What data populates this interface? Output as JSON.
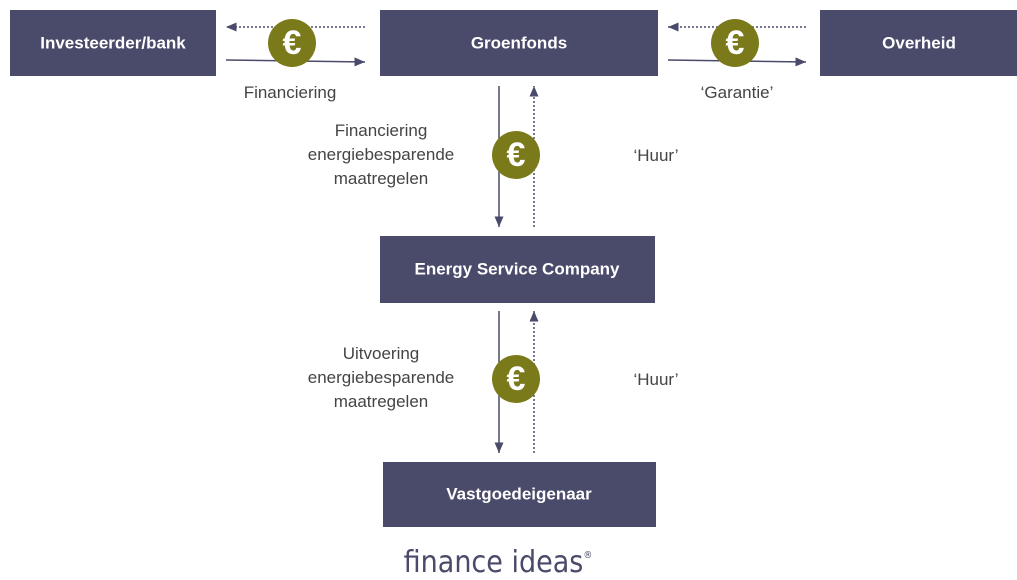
{
  "nodes": [
    {
      "label": "Investeerder/bank"
    },
    {
      "label": "Groenfonds"
    },
    {
      "label": "Overheid"
    },
    {
      "label": "Energy Service Company"
    },
    {
      "label": "Vastgoedeigenaar"
    }
  ],
  "edges": [
    {
      "label": "Financiering"
    },
    {
      "label": "‘Garantie’"
    },
    {
      "label": "Financiering energiebesparende maatregelen"
    },
    {
      "label": "‘Huur’"
    },
    {
      "label": "Uitvoering energiebesparende maatregelen"
    },
    {
      "label": "‘Huur’"
    }
  ],
  "logo": {
    "text": "finance ideas",
    "mark": "®"
  }
}
